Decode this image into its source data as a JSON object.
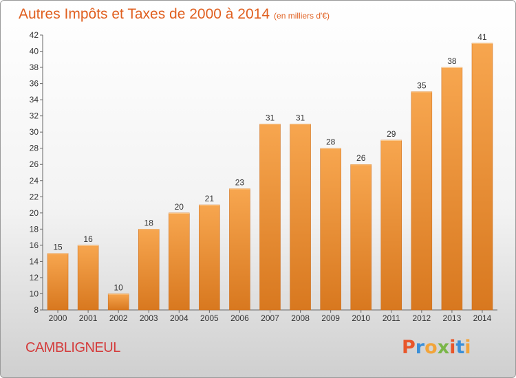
{
  "title": "Autres Impôts et Taxes de 2000 à 2014",
  "unit_label": "(en milliers d'€)",
  "commune": "CAMBLIGNEUL",
  "brand": {
    "text": "Proxiti",
    "letter_colors": [
      "#e8562a",
      "#3a8fd8",
      "#f2a43a",
      "#7ab648",
      "#e8562a",
      "#3a8fd8",
      "#f2a43a"
    ]
  },
  "colors": {
    "bar_light": "#f7a64f",
    "bar_dark": "#d8781f",
    "title": "#e06020",
    "commune": "#d43c3c"
  },
  "chart_data": {
    "type": "bar",
    "title": "Autres Impôts et Taxes de 2000 à 2014",
    "subtitle": "(en milliers d'€)",
    "xlabel": "",
    "ylabel": "",
    "categories": [
      "2000",
      "2001",
      "2002",
      "2003",
      "2004",
      "2005",
      "2006",
      "2007",
      "2008",
      "2009",
      "2010",
      "2011",
      "2012",
      "2013",
      "2014"
    ],
    "values": [
      15,
      16,
      10,
      18,
      20,
      21,
      23,
      31,
      31,
      28,
      26,
      29,
      35,
      38,
      41
    ],
    "ylim": [
      8,
      42
    ],
    "yticks": [
      8,
      10,
      12,
      14,
      16,
      18,
      20,
      22,
      24,
      26,
      28,
      30,
      32,
      34,
      36,
      38,
      40,
      42
    ],
    "grid": false,
    "legend": "none"
  }
}
